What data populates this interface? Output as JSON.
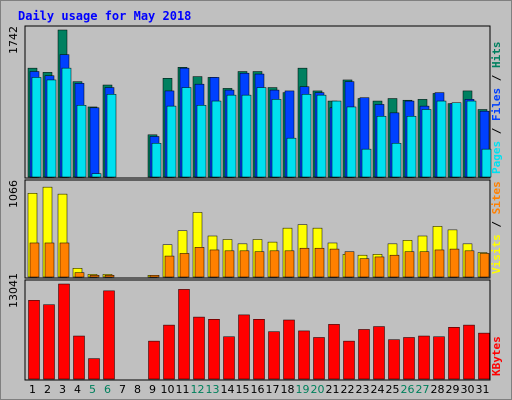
{
  "chart_data": {
    "type": "bar",
    "title": "Daily usage for May 2018",
    "categories": [
      "1",
      "2",
      "3",
      "4",
      "5",
      "6",
      "7",
      "8",
      "9",
      "10",
      "11",
      "12",
      "13",
      "14",
      "15",
      "16",
      "17",
      "18",
      "19",
      "20",
      "21",
      "22",
      "23",
      "24",
      "25",
      "26",
      "27",
      "28",
      "29",
      "30",
      "31"
    ],
    "weekend_days": [
      "5",
      "6",
      "12",
      "13",
      "19",
      "20",
      "26",
      "27"
    ],
    "panels": [
      {
        "name": "hits-files-pages",
        "max_label": "1742",
        "ymax": 1742,
        "legend": [
          {
            "text": "Pages",
            "color": "#00e0f0"
          },
          {
            "text": "Files",
            "color": "#0040ff"
          },
          {
            "text": "Hits",
            "color": "#008060"
          }
        ],
        "series": [
          {
            "name": "Hits",
            "color": "#008060",
            "values": [
              1290,
              1240,
              1742,
              1130,
              830,
              1090,
              0,
              0,
              500,
              1170,
              1300,
              1190,
              1180,
              1050,
              1250,
              1250,
              1060,
              1000,
              1290,
              1020,
              900,
              1150,
              930,
              900,
              930,
              910,
              920,
              990,
              870,
              1020,
              800
            ]
          },
          {
            "name": "Files",
            "color": "#0040ff",
            "values": [
              1250,
              1200,
              1450,
              1110,
              820,
              1060,
              0,
              0,
              480,
              1020,
              1290,
              1100,
              1180,
              1030,
              1230,
              1220,
              1030,
              1020,
              1070,
              1000,
              820,
              1130,
              940,
              860,
              760,
              900,
              840,
              1000,
              870,
              920,
              780
            ]
          },
          {
            "name": "Pages",
            "color": "#00e0f0",
            "values": [
              1180,
              1150,
              1290,
              850,
              40,
              980,
              0,
              0,
              400,
              840,
              1060,
              850,
              900,
              970,
              970,
              1060,
              920,
              460,
              980,
              970,
              900,
              830,
              330,
              720,
              400,
              720,
              800,
              900,
              880,
              900,
              330
            ]
          }
        ]
      },
      {
        "name": "visits-sites",
        "max_label": "1066",
        "ymax": 1066,
        "legend": [
          {
            "text": "Visits",
            "color": "#ffff00"
          },
          {
            "text": "Sites",
            "color": "#ff8000"
          }
        ],
        "series": [
          {
            "name": "Visits",
            "color": "#ffff00",
            "values": [
              960,
              1030,
              950,
              100,
              30,
              30,
              0,
              0,
              20,
              370,
              530,
              740,
              470,
              430,
              380,
              430,
              400,
              560,
              600,
              560,
              390,
              260,
              250,
              260,
              380,
              420,
              470,
              580,
              540,
              380,
              280
            ]
          },
          {
            "name": "Sites",
            "color": "#ff8000",
            "values": [
              390,
              390,
              390,
              50,
              20,
              20,
              0,
              0,
              20,
              240,
              270,
              340,
              310,
              300,
              300,
              290,
              300,
              300,
              330,
              330,
              320,
              290,
              210,
              230,
              250,
              290,
              290,
              310,
              320,
              300,
              270
            ]
          }
        ]
      },
      {
        "name": "kbytes",
        "max_label": "13041",
        "ymax": 13041,
        "legend": [
          {
            "text": "KBytes",
            "color": "#ff0000"
          }
        ],
        "series": [
          {
            "name": "KBytes",
            "color": "#ff0000",
            "values": [
              10800,
              10200,
              13041,
              5900,
              2800,
              12100,
              0,
              0,
              5200,
              7400,
              12300,
              8500,
              8200,
              5800,
              8800,
              8200,
              6500,
              8100,
              6600,
              5700,
              7500,
              5200,
              6800,
              7200,
              5400,
              5700,
              5900,
              5800,
              7100,
              7400,
              6300
            ]
          }
        ]
      }
    ]
  },
  "colors": {
    "background": "#c0c0c0",
    "title": "#0000ff",
    "weekday_label": "#000000",
    "weekend_label": "#00805c"
  }
}
